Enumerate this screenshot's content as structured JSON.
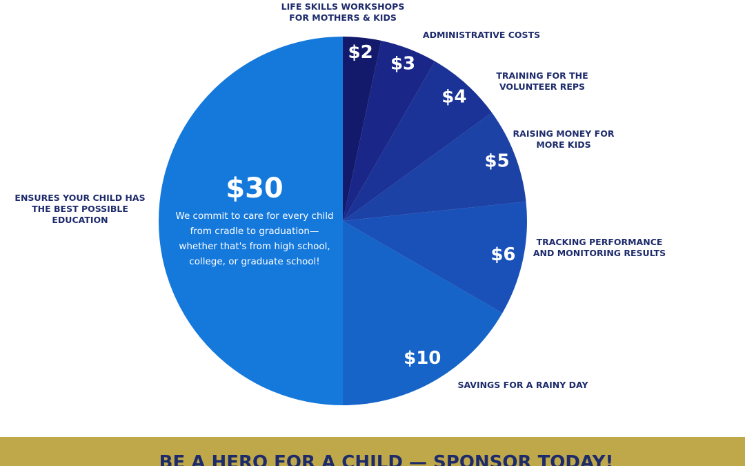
{
  "chart_data": {
    "type": "pie",
    "categories": [
      "LIFE SKILLS WORKSHOPS FOR MOTHERS & KIDS",
      "ADMINISTRATIVE COSTS",
      "TRAINING FOR THE VOLUNTEER REPS",
      "RAISING MONEY FOR MORE KIDS",
      "TRACKING PERFORMANCE AND MONITORING RESULTS",
      "SAVINGS FOR A RAINY DAY",
      "ENSURES YOUR CHILD HAS THE BEST POSSIBLE EDUCATION"
    ],
    "values": [
      2,
      3,
      4,
      5,
      6,
      10,
      30
    ],
    "value_labels": [
      "$2",
      "$3",
      "$4",
      "$5",
      "$6",
      "$10",
      "$30"
    ],
    "colors": [
      "#131a6b",
      "#1a2788",
      "#1b3396",
      "#1c42a6",
      "#1a51b9",
      "#1664c8",
      "#1579dc"
    ],
    "annotation": "We commit to care for every child from cradle to graduation—whether that's from high school, college, or graduate school!",
    "banner": "BE A HERO FOR A CHILD — SPONSOR TODAY!"
  }
}
